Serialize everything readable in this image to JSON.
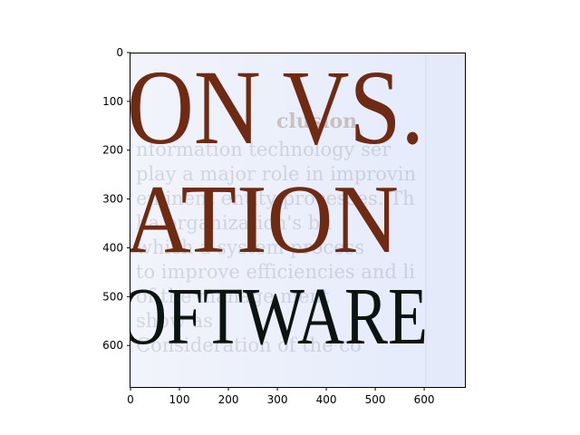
{
  "chart_data": {
    "type": "image",
    "x_ticks": [
      "0",
      "100",
      "200",
      "300",
      "400",
      "500",
      "600"
    ],
    "y_ticks": [
      "0",
      "100",
      "200",
      "300",
      "400",
      "500",
      "600"
    ],
    "xlim": [
      0,
      685
    ],
    "ylim": [
      685,
      0
    ],
    "x_inverted": false,
    "y_inverted": true
  },
  "image_text": {
    "line1": "ON VS.",
    "line2": "ATION",
    "line3": "OFTWARE",
    "background_heading": "clusion",
    "background_lines": [
      "nformation technology ser",
      "play a major role in improvin",
      "eminent entity processes. Th",
      "ha      organization's bu",
      "which a system process",
      "to improve efficiencies and li",
      "of the manage ment",
      "show      as",
      "Consideration of the co"
    ]
  },
  "colors": {
    "image_background": "#e6ecfa",
    "title_red": "#6e2a12",
    "title_dark": "#0b1410",
    "axis": "#000000"
  }
}
